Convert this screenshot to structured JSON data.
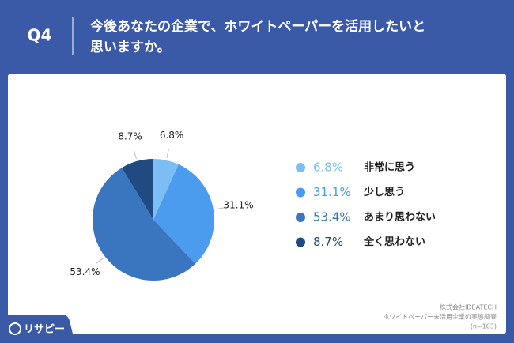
{
  "header": {
    "question": "Q4",
    "title_lines": [
      "今後あなたの企業で、ホワイトペーパーを活用したいと",
      "思いますか。"
    ]
  },
  "chart_data": {
    "type": "pie",
    "categories": [
      "非常に思う",
      "少し思う",
      "あまり思わない",
      "全く思わない"
    ],
    "values": [
      6.8,
      31.1,
      53.4,
      8.7
    ],
    "value_labels": [
      "6.8%",
      "31.1%",
      "53.4%",
      "8.7%"
    ],
    "colors": [
      "#7cbdf3",
      "#4b9cee",
      "#3a76c0",
      "#1f4a82"
    ]
  },
  "source": [
    "株式会社IDEATECH",
    "ホワイトペーパー未活用企業の実態調査",
    "(n=103)"
  ],
  "logo": "リサピー"
}
